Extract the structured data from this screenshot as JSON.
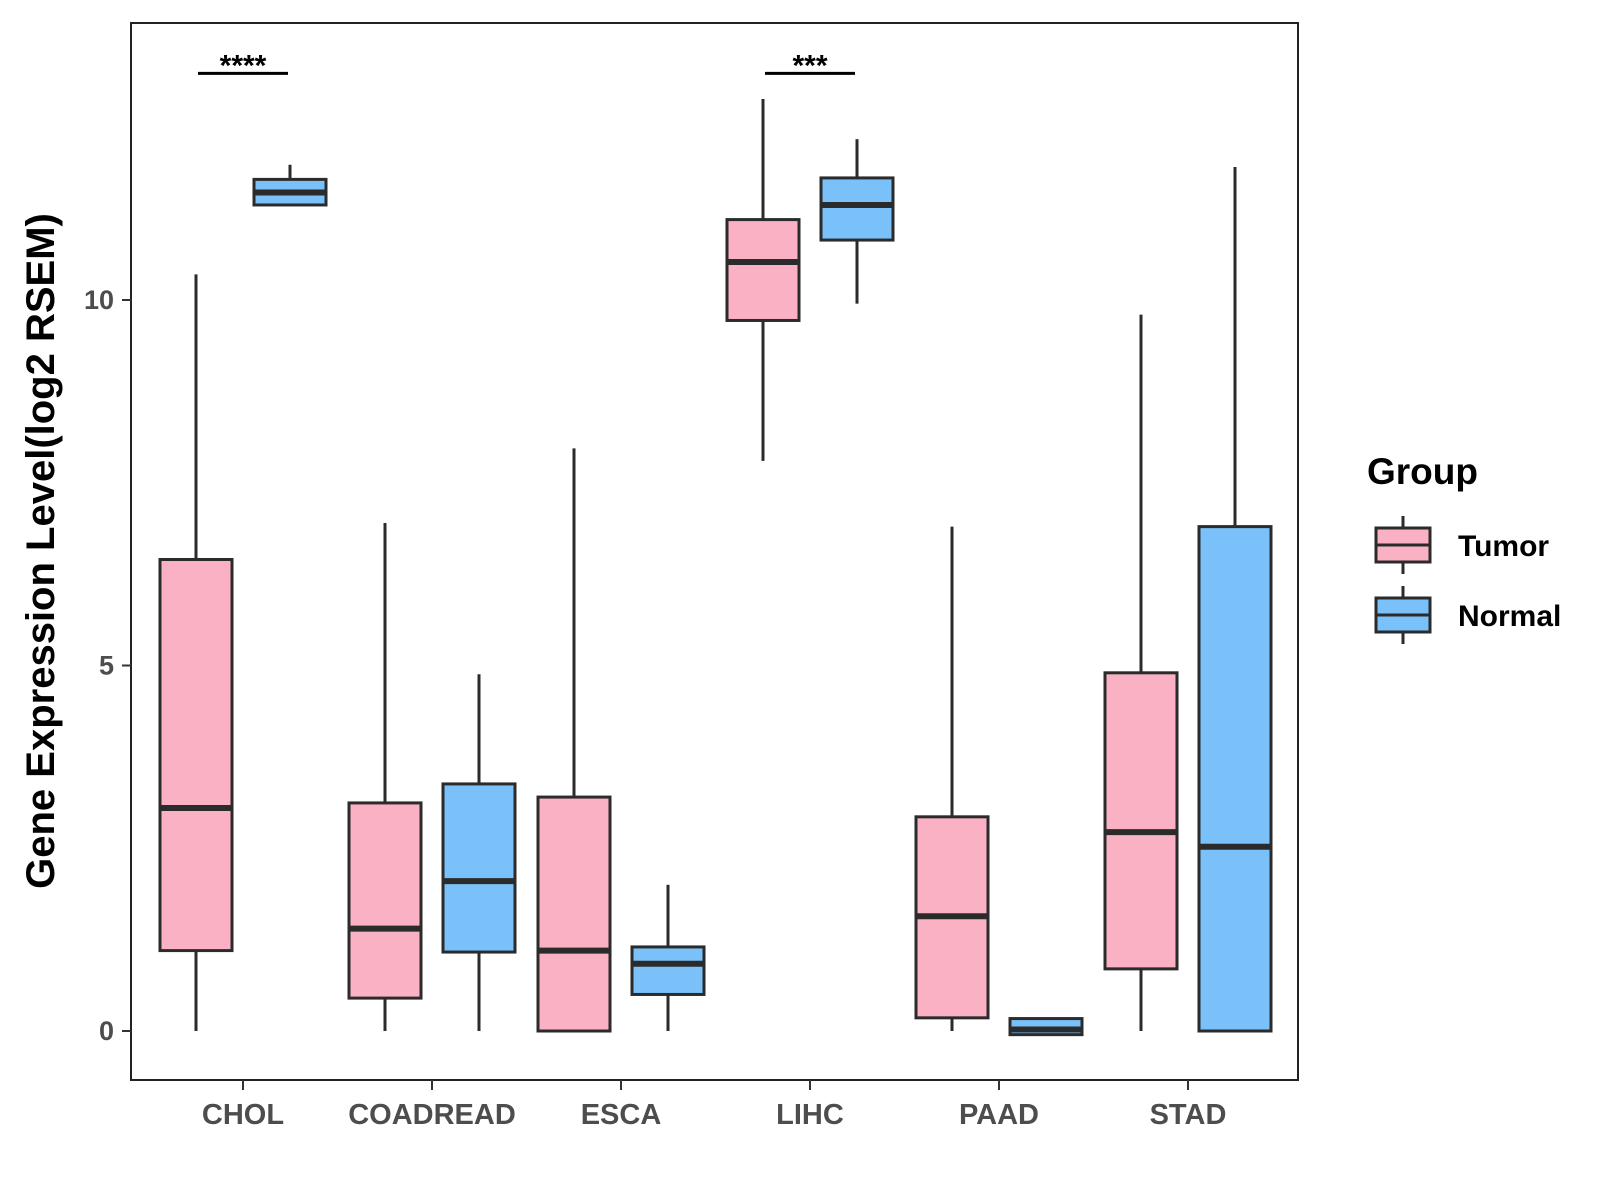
{
  "chart_data": {
    "type": "boxplot",
    "ylabel": "Gene Expression Level(log2 RSEM)",
    "xlabel": "",
    "ylim": [
      -0.65,
      13.8
    ],
    "yticks": [
      0,
      5,
      10
    ],
    "categories": [
      "CHOL",
      "COADREAD",
      "ESCA",
      "LIHC",
      "PAAD",
      "STAD"
    ],
    "legend": {
      "title": "Group",
      "position": "right",
      "entries": [
        {
          "name": "Tumor",
          "color": "#FBB1C4"
        },
        {
          "name": "Normal",
          "color": "#79C1F8"
        }
      ]
    },
    "series": [
      {
        "name": "Tumor",
        "color": "#FBB1C4",
        "boxes": [
          {
            "category": "CHOL",
            "min": 0.0,
            "q1": 1.1,
            "median": 3.05,
            "q3": 6.45,
            "max": 10.35
          },
          {
            "category": "COADREAD",
            "min": 0.0,
            "q1": 0.45,
            "median": 1.4,
            "q3": 3.12,
            "max": 6.95
          },
          {
            "category": "ESCA",
            "min": 0.0,
            "q1": 0.0,
            "median": 1.1,
            "q3": 3.2,
            "max": 7.97
          },
          {
            "category": "LIHC",
            "min": 7.8,
            "q1": 9.72,
            "median": 10.52,
            "q3": 11.1,
            "max": 12.75
          },
          {
            "category": "PAAD",
            "min": 0.0,
            "q1": 0.18,
            "median": 1.57,
            "q3": 2.93,
            "max": 6.9
          },
          {
            "category": "STAD",
            "min": 0.0,
            "q1": 0.85,
            "median": 2.72,
            "q3": 4.9,
            "max": 9.8
          }
        ]
      },
      {
        "name": "Normal",
        "color": "#79C1F8",
        "boxes": [
          {
            "category": "CHOL",
            "min": 11.3,
            "q1": 11.3,
            "median": 11.47,
            "q3": 11.65,
            "max": 11.85
          },
          {
            "category": "COADREAD",
            "min": 0.0,
            "q1": 1.08,
            "median": 2.05,
            "q3": 3.38,
            "max": 4.88
          },
          {
            "category": "ESCA",
            "min": 0.0,
            "q1": 0.5,
            "median": 0.92,
            "q3": 1.15,
            "max": 2.0
          },
          {
            "category": "LIHC",
            "min": 9.95,
            "q1": 10.82,
            "median": 11.3,
            "q3": 11.67,
            "max": 12.2
          },
          {
            "category": "PAAD",
            "min": -0.05,
            "q1": -0.05,
            "median": 0.02,
            "q3": 0.17,
            "max": 0.17
          },
          {
            "category": "STAD",
            "min": 0.0,
            "q1": 0.0,
            "median": 2.52,
            "q3": 6.9,
            "max": 11.82
          }
        ]
      }
    ],
    "annotations": [
      {
        "category": "CHOL",
        "text": "****",
        "y": 13.1
      },
      {
        "category": "LIHC",
        "text": "***",
        "y": 13.1
      }
    ]
  }
}
